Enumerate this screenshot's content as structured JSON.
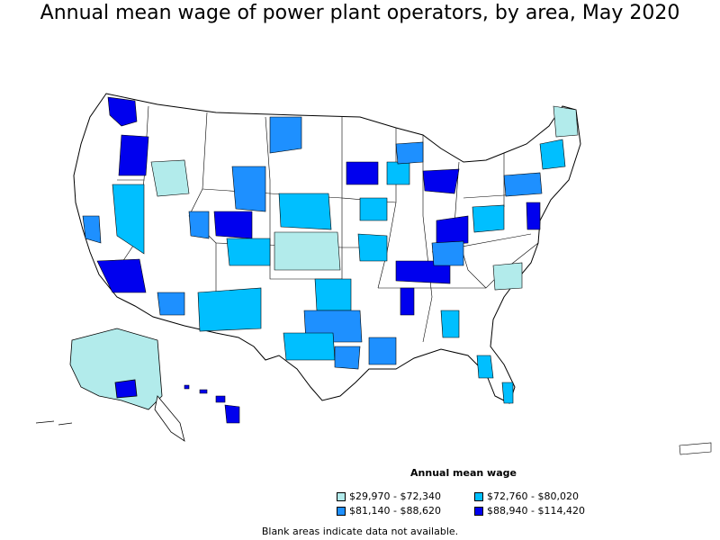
{
  "title": "Annual mean wage of power plant operators, by area, May 2020",
  "legend": {
    "title": "Annual mean wage",
    "items": [
      {
        "label": "$29,970 - $72,340",
        "color": "#b2ebeb"
      },
      {
        "label": "$72,760 - $80,020",
        "color": "#00bfff"
      },
      {
        "label": "$81,140 - $88,620",
        "color": "#1e90ff"
      },
      {
        "label": "$88,940 - $114,420",
        "color": "#0000ee"
      }
    ]
  },
  "note": "Blank areas indicate data not available."
}
